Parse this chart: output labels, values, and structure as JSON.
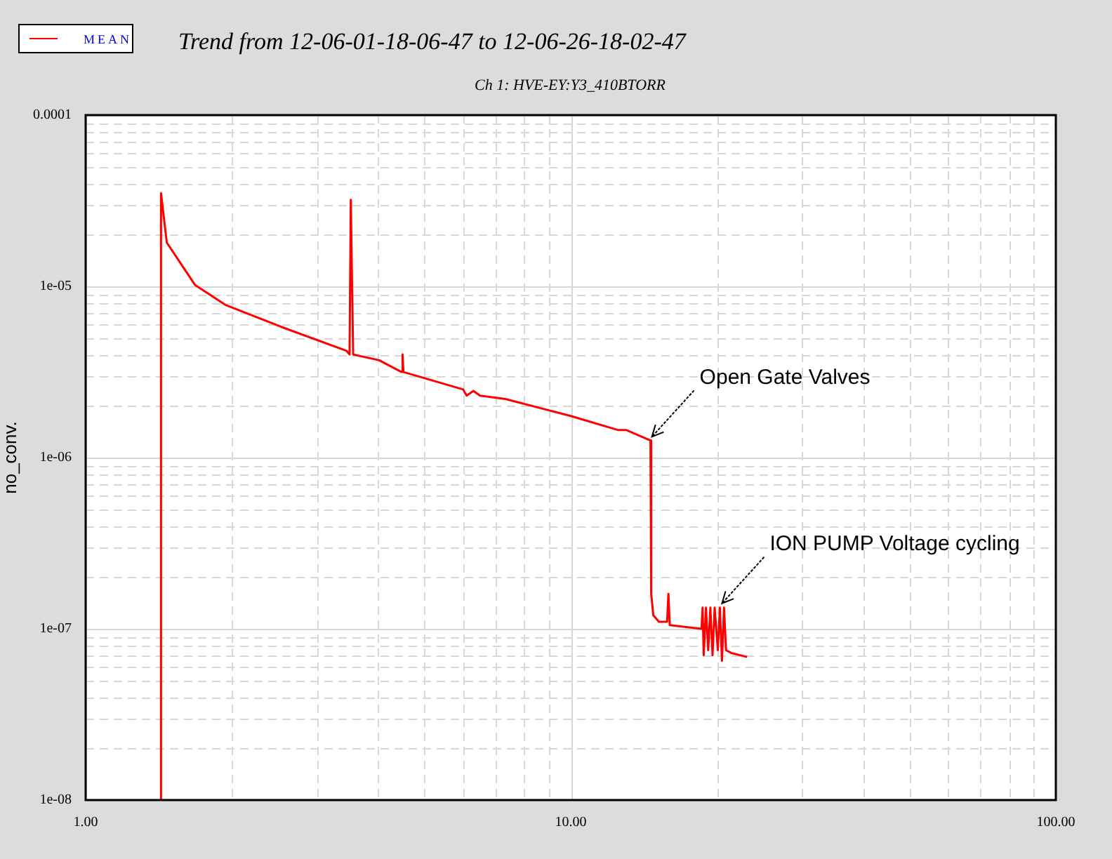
{
  "chart_data": {
    "type": "line",
    "title": "Trend from 12-06-01-18-06-47 to 12-06-26-18-02-47",
    "subtitle": "Ch 1: HVE-EY:Y3_410BTORR",
    "ylabel": "no_conv.",
    "log": "xy",
    "grid": true,
    "legend": "top left",
    "marker": "none",
    "line_style": "solid",
    "xlim": [
      1,
      100
    ],
    "ylim": [
      1e-08,
      0.0001
    ],
    "xticks": [
      {
        "value": 1,
        "label": "1.00"
      },
      {
        "value": 2,
        "label": null
      },
      {
        "value": 3,
        "label": null
      },
      {
        "value": 4,
        "label": null
      },
      {
        "value": 5,
        "label": null
      },
      {
        "value": 6,
        "label": null
      },
      {
        "value": 7,
        "label": null
      },
      {
        "value": 8,
        "label": null
      },
      {
        "value": 9,
        "label": null
      },
      {
        "value": 10,
        "label": "10.00"
      },
      {
        "value": 20,
        "label": null
      },
      {
        "value": 30,
        "label": null
      },
      {
        "value": 40,
        "label": null
      },
      {
        "value": 50,
        "label": null
      },
      {
        "value": 60,
        "label": null
      },
      {
        "value": 70,
        "label": null
      },
      {
        "value": 80,
        "label": null
      },
      {
        "value": 90,
        "label": null
      },
      {
        "value": 100,
        "label": "100.00"
      }
    ],
    "yticks": [
      {
        "value": 1e-08,
        "label": "1e-08"
      },
      {
        "value": 2e-08,
        "label": null
      },
      {
        "value": 3e-08,
        "label": null
      },
      {
        "value": 4e-08,
        "label": null
      },
      {
        "value": 5e-08,
        "label": null
      },
      {
        "value": 6e-08,
        "label": null
      },
      {
        "value": 7e-08,
        "label": null
      },
      {
        "value": 8e-08,
        "label": null
      },
      {
        "value": 9e-08,
        "label": null
      },
      {
        "value": 1e-07,
        "label": "1e-07"
      },
      {
        "value": 2e-07,
        "label": null
      },
      {
        "value": 3e-07,
        "label": null
      },
      {
        "value": 4e-07,
        "label": null
      },
      {
        "value": 5e-07,
        "label": null
      },
      {
        "value": 6e-07,
        "label": null
      },
      {
        "value": 7e-07,
        "label": null
      },
      {
        "value": 8e-07,
        "label": null
      },
      {
        "value": 9e-07,
        "label": null
      },
      {
        "value": 1e-06,
        "label": "1e-06"
      },
      {
        "value": 2e-06,
        "label": null
      },
      {
        "value": 3e-06,
        "label": null
      },
      {
        "value": 4e-06,
        "label": null
      },
      {
        "value": 5e-06,
        "label": null
      },
      {
        "value": 6e-06,
        "label": null
      },
      {
        "value": 7e-06,
        "label": null
      },
      {
        "value": 8e-06,
        "label": null
      },
      {
        "value": 9e-06,
        "label": null
      },
      {
        "value": 1e-05,
        "label": "1e-05"
      },
      {
        "value": 2e-05,
        "label": null
      },
      {
        "value": 3e-05,
        "label": null
      },
      {
        "value": 4e-05,
        "label": null
      },
      {
        "value": 5e-05,
        "label": null
      },
      {
        "value": 6e-05,
        "label": null
      },
      {
        "value": 7e-05,
        "label": null
      },
      {
        "value": 8e-05,
        "label": null
      },
      {
        "value": 9e-05,
        "label": null
      },
      {
        "value": 0.0001,
        "label": "0.0001"
      }
    ],
    "annotations": [
      {
        "text": "Open Gate Valves",
        "x": 14.7,
        "y": 1.25e-06
      },
      {
        "text": "ION PUMP Voltage cycling",
        "x": 20.5,
        "y": 1.33e-07
      }
    ],
    "series": [
      {
        "name": "MEAN",
        "color": "#ff0000",
        "x": [
          1.43,
          1.43,
          1.47,
          1.68,
          1.94,
          2.53,
          3.45,
          3.5,
          3.52,
          3.56,
          4.03,
          4.48,
          4.5,
          4.52,
          6.0,
          6.1,
          6.3,
          6.5,
          7.33,
          10,
          12.5,
          13,
          14.6,
          14.65,
          14.8,
          15.2,
          15.8,
          15.9,
          16.0,
          18.6,
          18.7,
          18.8,
          19.0,
          19.2,
          19.4,
          19.6,
          19.8,
          20.1,
          20.3,
          20.5,
          20.7,
          20.9,
          21.5,
          23.1
        ],
        "values": [
          1e-08,
          3.5e-05,
          1.8e-05,
          1.02e-05,
          7.8e-06,
          5.8e-06,
          4.2e-06,
          4e-06,
          3.2e-05,
          4e-06,
          3.7e-06,
          3.16e-06,
          4e-06,
          3.16e-06,
          2.5e-06,
          2.3e-06,
          2.45e-06,
          2.3e-06,
          2.2e-06,
          1.75e-06,
          1.45e-06,
          1.45e-06,
          1.26e-06,
          1.6e-07,
          1.2e-07,
          1.1e-07,
          1.1e-07,
          1.6e-07,
          1.05e-07,
          1e-07,
          1.33e-07,
          7e-08,
          1.33e-07,
          7.5e-08,
          1.33e-07,
          7e-08,
          1.33e-07,
          7.5e-08,
          1.33e-07,
          6.5e-08,
          1.33e-07,
          7.5e-08,
          7.2e-08,
          6.85e-08
        ]
      }
    ]
  }
}
